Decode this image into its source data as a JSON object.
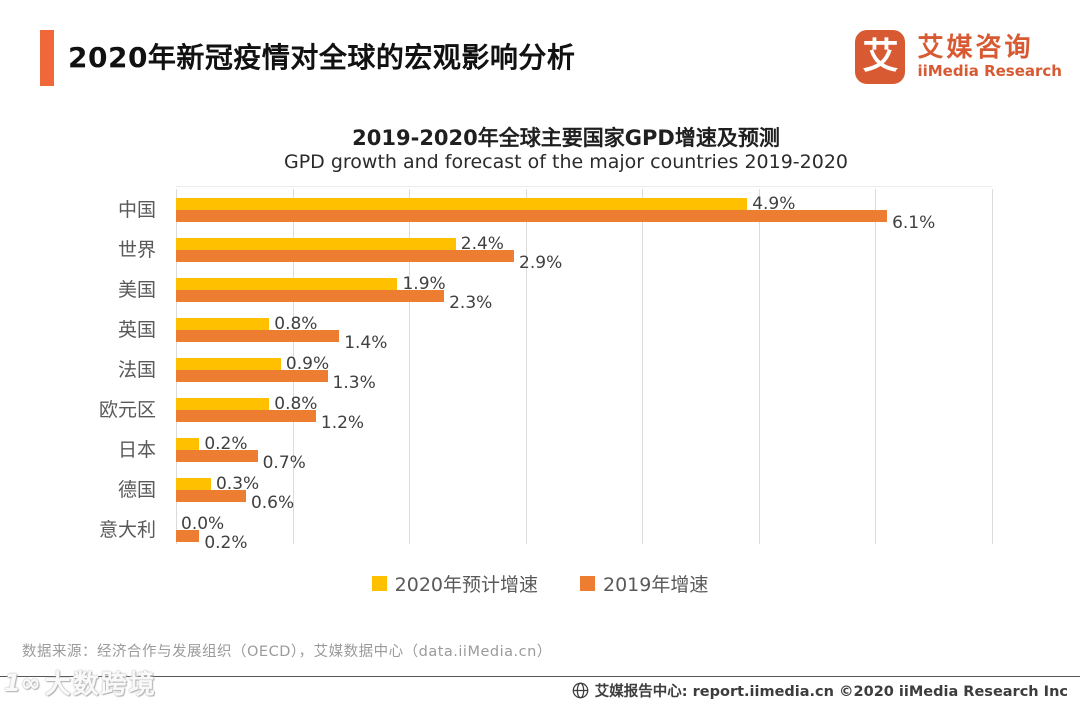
{
  "header": {
    "title": "2020年新冠疫情对全球的宏观影响分析"
  },
  "logo": {
    "mark_char": "艾",
    "name_cn": "艾媒咨询",
    "name_en": "iiMedia Research"
  },
  "chart_data": {
    "type": "bar",
    "orientation": "horizontal",
    "title": "2019-2020年全球主要国家GPD增速及预测",
    "subtitle": "GPD growth and forecast of the major countries 2019-2020",
    "categories": [
      "中国",
      "世界",
      "美国",
      "英国",
      "法国",
      "欧元区",
      "日本",
      "德国",
      "意大利"
    ],
    "series": [
      {
        "name": "2020年预计增速",
        "color": "#FFC000",
        "values": [
          4.9,
          2.4,
          1.9,
          0.8,
          0.9,
          0.8,
          0.2,
          0.3,
          0.0
        ]
      },
      {
        "name": "2019年增速",
        "color": "#ED7D31",
        "values": [
          6.1,
          2.9,
          2.3,
          1.4,
          1.3,
          1.2,
          0.7,
          0.6,
          0.2
        ]
      }
    ],
    "value_suffix": "%",
    "value_decimals": 1,
    "xlim": [
      0,
      7
    ],
    "gridline_step": 1,
    "grid": true,
    "legend_position": "bottom",
    "xlabel": "",
    "ylabel": ""
  },
  "source": {
    "text": "数据来源：经济合作与发展组织（OECD），艾媒数据中心（data.iiMedia.cn）"
  },
  "footer": {
    "text": "艾媒报告中心: report.iimedia.cn  ©2020  iiMedia Research Inc"
  },
  "watermark": {
    "icon": "1∞",
    "text": "大数跨境"
  },
  "colors": {
    "accent": "#F0683A",
    "brand": "#D75A33",
    "series_2020": "#FFC000",
    "series_2019": "#ED7D31",
    "gridline": "#DBDBDB",
    "category_label": "#595959",
    "value_label": "#404040",
    "legend_text": "#595959",
    "source_text": "#9B9B9B",
    "footer_text": "#3D3D3D"
  }
}
